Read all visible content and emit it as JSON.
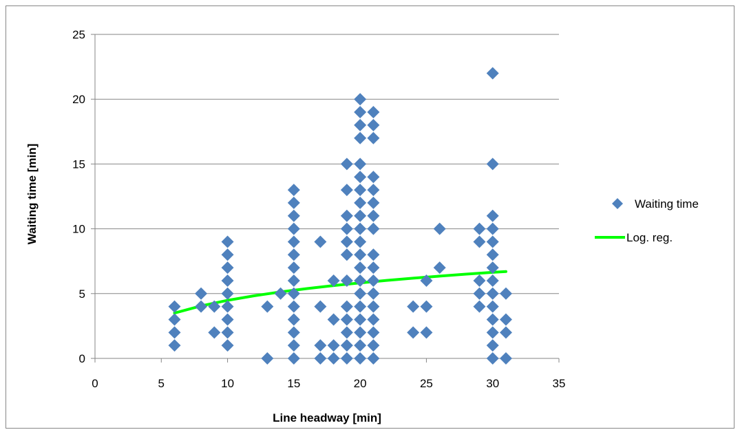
{
  "chart_data": {
    "type": "scatter",
    "xlabel": "Line headway [min]",
    "ylabel": "Waiting time [min]",
    "xlim": [
      0,
      35
    ],
    "ylim": [
      0,
      25
    ],
    "xticks": [
      "0",
      "5",
      "10",
      "15",
      "20",
      "25",
      "30",
      "35"
    ],
    "yticks": [
      "0",
      "5",
      "10",
      "15",
      "20",
      "25"
    ],
    "grid": "horizontal",
    "legend_position": "right",
    "colors": {
      "marker": "#4F81BD",
      "regression": "#00FF00",
      "grid": "#868686"
    },
    "series": [
      {
        "name": "Waiting time",
        "kind": "scatter",
        "marker": "diamond",
        "points": [
          [
            6,
            4
          ],
          [
            6,
            3
          ],
          [
            6,
            2
          ],
          [
            6,
            1
          ],
          [
            8,
            5
          ],
          [
            8,
            4
          ],
          [
            9,
            4
          ],
          [
            9,
            2
          ],
          [
            10,
            9
          ],
          [
            10,
            8
          ],
          [
            10,
            7
          ],
          [
            10,
            6
          ],
          [
            10,
            5
          ],
          [
            10,
            4
          ],
          [
            10,
            3
          ],
          [
            10,
            2
          ],
          [
            10,
            1
          ],
          [
            13,
            4
          ],
          [
            13,
            0
          ],
          [
            14,
            5
          ],
          [
            15,
            13
          ],
          [
            15,
            12
          ],
          [
            15,
            11
          ],
          [
            15,
            10
          ],
          [
            15,
            9
          ],
          [
            15,
            8
          ],
          [
            15,
            7
          ],
          [
            15,
            6
          ],
          [
            15,
            5
          ],
          [
            15,
            4
          ],
          [
            15,
            3
          ],
          [
            15,
            2
          ],
          [
            15,
            1
          ],
          [
            15,
            0
          ],
          [
            17,
            9
          ],
          [
            17,
            4
          ],
          [
            17,
            1
          ],
          [
            17,
            0
          ],
          [
            18,
            6
          ],
          [
            18,
            3
          ],
          [
            18,
            1
          ],
          [
            18,
            0
          ],
          [
            19,
            15
          ],
          [
            19,
            13
          ],
          [
            19,
            11
          ],
          [
            19,
            10
          ],
          [
            19,
            9
          ],
          [
            19,
            8
          ],
          [
            19,
            6
          ],
          [
            19,
            4
          ],
          [
            19,
            3
          ],
          [
            19,
            2
          ],
          [
            19,
            1
          ],
          [
            19,
            0
          ],
          [
            20,
            20
          ],
          [
            20,
            19
          ],
          [
            20,
            18
          ],
          [
            20,
            17
          ],
          [
            20,
            15
          ],
          [
            20,
            14
          ],
          [
            20,
            13
          ],
          [
            20,
            12
          ],
          [
            20,
            11
          ],
          [
            20,
            10
          ],
          [
            20,
            9
          ],
          [
            20,
            8
          ],
          [
            20,
            7
          ],
          [
            20,
            6
          ],
          [
            20,
            5
          ],
          [
            20,
            4
          ],
          [
            20,
            3
          ],
          [
            20,
            2
          ],
          [
            20,
            1
          ],
          [
            20,
            0
          ],
          [
            21,
            19
          ],
          [
            21,
            18
          ],
          [
            21,
            17
          ],
          [
            21,
            14
          ],
          [
            21,
            13
          ],
          [
            21,
            12
          ],
          [
            21,
            11
          ],
          [
            21,
            10
          ],
          [
            21,
            8
          ],
          [
            21,
            7
          ],
          [
            21,
            6
          ],
          [
            21,
            5
          ],
          [
            21,
            4
          ],
          [
            21,
            3
          ],
          [
            21,
            2
          ],
          [
            21,
            1
          ],
          [
            21,
            0
          ],
          [
            24,
            4
          ],
          [
            24,
            2
          ],
          [
            25,
            6
          ],
          [
            25,
            4
          ],
          [
            25,
            2
          ],
          [
            26,
            10
          ],
          [
            26,
            7
          ],
          [
            29,
            10
          ],
          [
            29,
            9
          ],
          [
            29,
            6
          ],
          [
            29,
            5
          ],
          [
            29,
            4
          ],
          [
            30,
            22
          ],
          [
            30,
            15
          ],
          [
            30,
            11
          ],
          [
            30,
            10
          ],
          [
            30,
            9
          ],
          [
            30,
            8
          ],
          [
            30,
            7
          ],
          [
            30,
            6
          ],
          [
            30,
            5
          ],
          [
            30,
            4
          ],
          [
            30,
            3
          ],
          [
            30,
            2
          ],
          [
            30,
            1
          ],
          [
            30,
            0
          ],
          [
            31,
            5
          ],
          [
            31,
            3
          ],
          [
            31,
            2
          ],
          [
            31,
            0
          ]
        ]
      },
      {
        "name": "Log. reg.",
        "kind": "line",
        "x": [
          6,
          8,
          10,
          12,
          14,
          16,
          18,
          20,
          22,
          24,
          26,
          28,
          30,
          31
        ],
        "y": [
          3.5,
          4.05,
          4.48,
          4.83,
          5.13,
          5.39,
          5.62,
          5.83,
          6.02,
          6.19,
          6.35,
          6.5,
          6.64,
          6.7
        ]
      }
    ]
  }
}
